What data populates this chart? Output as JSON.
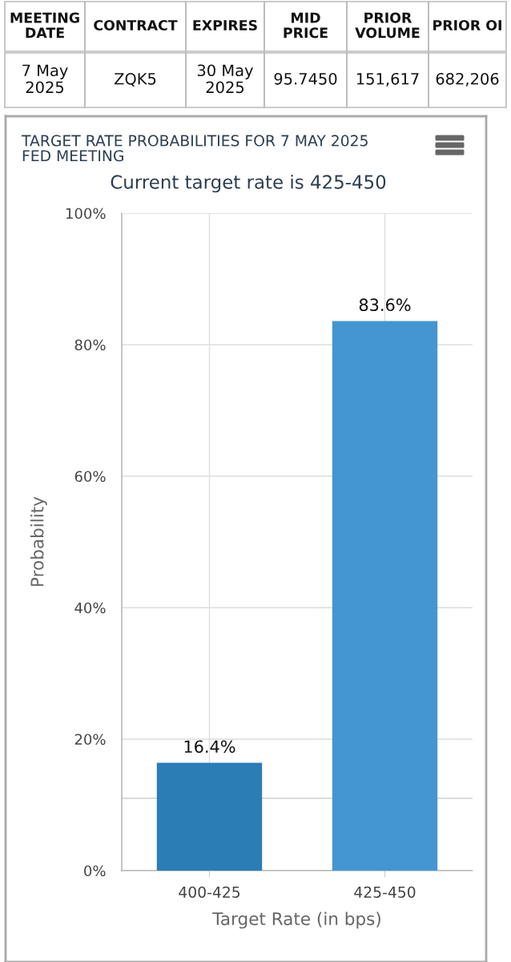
{
  "chart_data": [
    {
      "type": "other",
      "annotations": [
        "MEETING\nDATE",
        "CONTRACT",
        "EXPIRES",
        "MID\nPRICE",
        "PRIOR\nVOLUME",
        "PRIOR OI",
        "7 May\n2025",
        "ZQK5",
        "30 May\n2025",
        "95.7450",
        "151,617",
        "682,206"
      ]
    },
    {
      "type": "bar",
      "title": "TARGET RATE PROBABILITIES FOR 7 MAY 2025\nFED MEETING",
      "subtitle": "Current target rate is 425-450",
      "xlabel": "Target Rate (in bps)",
      "ylabel": "Probability",
      "categories": [
        "400-425",
        "425-450"
      ],
      "values": [
        16.4,
        83.6
      ],
      "colors": [
        "#2a7db5",
        "#4396d1"
      ],
      "value_labels": [
        "16.4%",
        "83.6%"
      ],
      "ylim": [
        0,
        100
      ],
      "yticks": [
        {
          "value": 0,
          "label": "0%"
        },
        {
          "value": 20,
          "label": "20%"
        },
        {
          "value": 40,
          "label": "40%"
        },
        {
          "value": 60,
          "label": "60%"
        },
        {
          "value": 80,
          "label": "80%"
        },
        {
          "value": 100,
          "label": "100%"
        }
      ],
      "ref_lines": [
        {
          "axis": "y",
          "value": 11,
          "label": null,
          "color": "#d0d0d0"
        }
      ],
      "grid": true
    }
  ]
}
